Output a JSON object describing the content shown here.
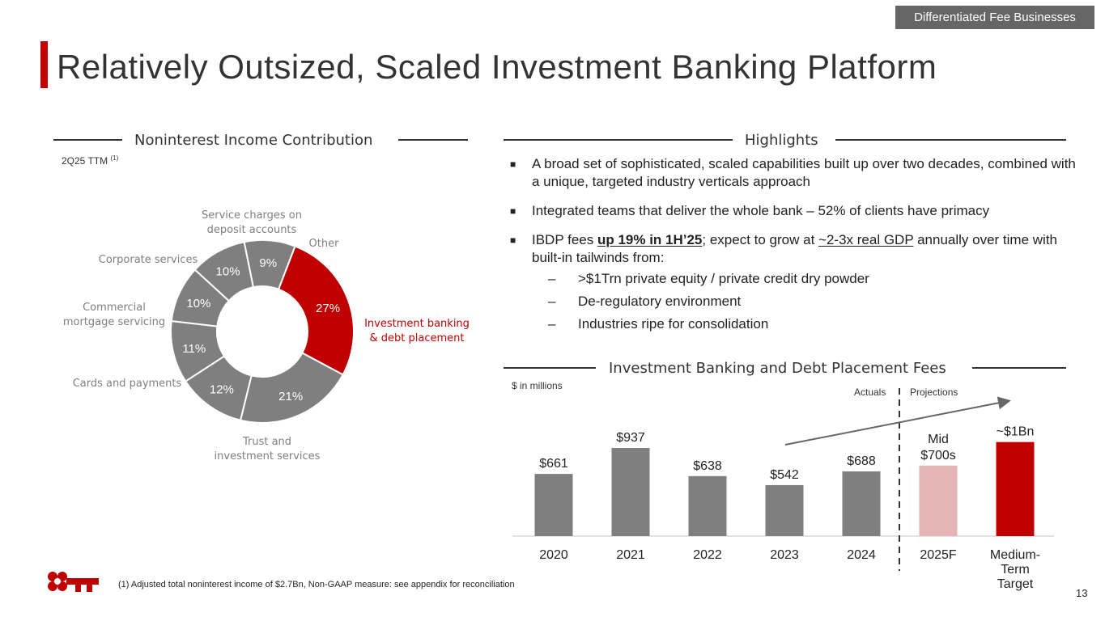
{
  "header": {
    "section_tag": "Differentiated Fee Businesses",
    "title": "Relatively Outsized, Scaled Investment Banking Platform"
  },
  "left_section": {
    "title": "Noninterest Income Contribution",
    "period_label": "2Q25 TTM",
    "period_note": "(1)"
  },
  "highlights": {
    "title": "Highlights",
    "bullets": [
      {
        "text": "A broad set of sophisticated, scaled capabilities built up over two decades, combined with a unique, targeted industry verticals approach"
      },
      {
        "text": "Integrated teams that deliver the whole bank – 52% of clients have primacy"
      },
      {
        "pre": "IBDP fees ",
        "u1": "up 19% in 1H’25",
        "mid": "; expect to grow at ",
        "u2": "~2-3x real GDP",
        "post": " annually over time with built-in tailwinds from:"
      }
    ],
    "subbullets": [
      ">$1Trn private equity / private credit dry powder",
      "De-regulatory environment",
      "Industries ripe for consolidation"
    ]
  },
  "bar_section": {
    "title": "Investment Banking and Debt Placement Fees",
    "units": "$ in millions",
    "actuals_label": "Actuals",
    "projections_label": "Projections"
  },
  "footnote": "(1) Adjusted total noninterest income of $2.7Bn, Non-GAAP measure: see appendix for reconciliation",
  "page_number": "13",
  "colors": {
    "brand_red": "#c00000",
    "gray": "#7f7f7f",
    "projection_pink": "#e6b4b4",
    "label_gray": "#7f7f7f",
    "dark": "#333333"
  },
  "chart_data": [
    {
      "type": "pie",
      "donut": true,
      "title": "Noninterest Income Contribution",
      "segments": [
        {
          "label": "Investment banking & debt placement",
          "value": 27,
          "display": "27%",
          "color": "#c00000",
          "label_color": "#c00000"
        },
        {
          "label": "Trust and investment services",
          "value": 21,
          "display": "21%",
          "color": "#7f7f7f",
          "label_color": "#7f7f7f"
        },
        {
          "label": "Cards and payments",
          "value": 12,
          "display": "12%",
          "color": "#7f7f7f",
          "label_color": "#7f7f7f"
        },
        {
          "label": "Commercial mortgage servicing",
          "value": 11,
          "display": "11%",
          "color": "#7f7f7f",
          "label_color": "#7f7f7f"
        },
        {
          "label": "Corporate services",
          "value": 10,
          "display": "10%",
          "color": "#7f7f7f",
          "label_color": "#7f7f7f"
        },
        {
          "label": "Service charges on deposit accounts",
          "value": 10,
          "display": "10%",
          "color": "#7f7f7f",
          "label_color": "#7f7f7f"
        },
        {
          "label": "Other",
          "value": 9,
          "display": "9%",
          "color": "#7f7f7f",
          "label_color": "#7f7f7f"
        }
      ]
    },
    {
      "type": "bar",
      "title": "Investment Banking and Debt Placement Fees",
      "ylabel": "$ in millions",
      "categories": [
        "2020",
        "2021",
        "2022",
        "2023",
        "2024",
        "2025F",
        "Medium-Term Target"
      ],
      "values": [
        661,
        937,
        638,
        542,
        688,
        750,
        1000
      ],
      "data_labels": [
        "$661",
        "$937",
        "$638",
        "$542",
        "$688",
        "Mid $700s",
        "~$1Bn"
      ],
      "bar_colors": [
        "#7f7f7f",
        "#7f7f7f",
        "#7f7f7f",
        "#7f7f7f",
        "#7f7f7f",
        "#e6b4b4",
        "#c00000"
      ],
      "ylim": [
        0,
        1050
      ],
      "divider_label_left": "Actuals",
      "divider_label_right": "Projections",
      "trend_arrow": true
    }
  ]
}
